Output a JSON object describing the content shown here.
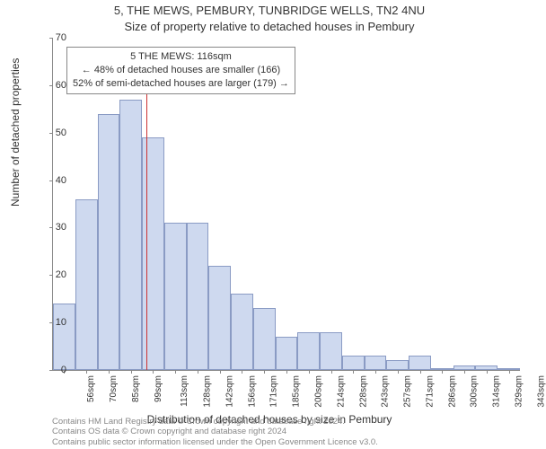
{
  "title_line1": "5, THE MEWS, PEMBURY, TUNBRIDGE WELLS, TN2 4NU",
  "title_line2": "Size of property relative to detached houses in Pembury",
  "ylabel": "Number of detached properties",
  "xlabel": "Distribution of detached houses by size in Pembury",
  "credits_line1": "Contains HM Land Registry data © Crown copyright and database right 2024.",
  "credits_line2": "Contains OS data © Crown copyright and database right 2024",
  "credits_line3": "Contains public sector information licensed under the Open Government Licence v3.0.",
  "chart": {
    "type": "histogram",
    "background_color": "#ffffff",
    "axis_color": "#888888",
    "bar_fill": "#ced9ef",
    "bar_stroke": "#8a9bc4",
    "marker_color": "#cc3333",
    "text_color": "#333333",
    "y": {
      "min": 0,
      "max": 70,
      "step": 10,
      "fontsize": 11
    },
    "x": {
      "labels": [
        "56sqm",
        "70sqm",
        "85sqm",
        "99sqm",
        "113sqm",
        "128sqm",
        "142sqm",
        "156sqm",
        "171sqm",
        "185sqm",
        "200sqm",
        "214sqm",
        "228sqm",
        "243sqm",
        "257sqm",
        "271sqm",
        "286sqm",
        "300sqm",
        "314sqm",
        "329sqm",
        "343sqm"
      ],
      "fontsize": 10
    },
    "values": [
      14,
      36,
      54,
      57,
      49,
      31,
      31,
      22,
      16,
      13,
      7,
      8,
      8,
      3,
      3,
      2,
      3,
      0,
      1,
      1,
      0
    ],
    "marker": {
      "index_after": 4,
      "fraction_into_bin": 0.2,
      "value_sqm": 116
    },
    "annotation": {
      "line1": "5 THE MEWS: 116sqm",
      "line2": "← 48% of detached houses are smaller (166)",
      "line3": "52% of semi-detached houses are larger (179) →"
    },
    "title_fontsize": 13,
    "label_fontsize": 12
  }
}
